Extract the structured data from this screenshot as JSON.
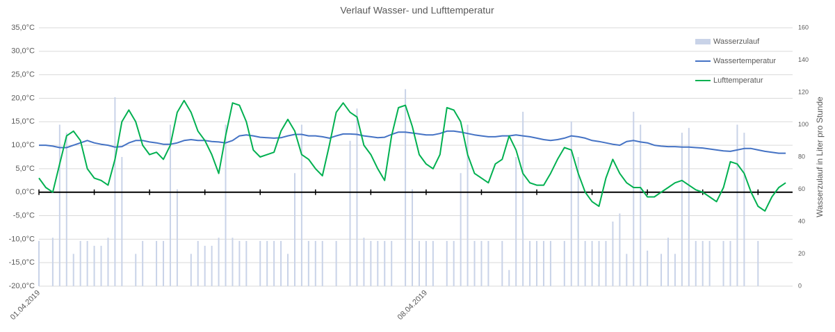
{
  "chart_data": {
    "type": "combo",
    "title": "Verlauf Wasser- und Lufttemperatur",
    "y2label": "Wasserzulauf in Liter pro Stunde",
    "categories": [
      "01.04.2019",
      null,
      null,
      null,
      null,
      null,
      null,
      null,
      null,
      null,
      null,
      null,
      null,
      null,
      null,
      null,
      null,
      null,
      null,
      null,
      null,
      null,
      null,
      null,
      null,
      null,
      null,
      null,
      null,
      null,
      null,
      null,
      null,
      null,
      null,
      null,
      null,
      null,
      null,
      null,
      null,
      null,
      null,
      null,
      null,
      null,
      null,
      null,
      null,
      null,
      null,
      null,
      null,
      null,
      null,
      null,
      "08.04.2019",
      null,
      null,
      null,
      null,
      null,
      null,
      null,
      null,
      null,
      null,
      null,
      null,
      null,
      null,
      null,
      null,
      null,
      null,
      null,
      null,
      null,
      null,
      null,
      null,
      null,
      null,
      null,
      null,
      null,
      null,
      null,
      null,
      null,
      null,
      null,
      null,
      null,
      null,
      null,
      null,
      null,
      null,
      null,
      null,
      null,
      null,
      null,
      null,
      null,
      null,
      null,
      null
    ],
    "ylim": [
      -20,
      35
    ],
    "yticks": [
      {
        "value": -20,
        "label": "-20,0°C"
      },
      {
        "value": -15,
        "label": "-15,0°C"
      },
      {
        "value": -10,
        "label": "-10,0°C"
      },
      {
        "value": -5,
        "label": "-5,0°C"
      },
      {
        "value": 0,
        "label": "0,0°C"
      },
      {
        "value": 5,
        "label": "5,0°C"
      },
      {
        "value": 10,
        "label": "10,0°C"
      },
      {
        "value": 15,
        "label": "15,0°C"
      },
      {
        "value": 20,
        "label": "20,0°C"
      },
      {
        "value": 25,
        "label": "25,0°C"
      },
      {
        "value": 30,
        "label": "30,0°C"
      },
      {
        "value": 35,
        "label": "35,0°C"
      }
    ],
    "y2lim": [
      0,
      160
    ],
    "y2ticks": [
      0,
      20,
      40,
      60,
      80,
      100,
      120,
      140,
      160
    ],
    "grid": true,
    "legend": "upper right",
    "series": [
      {
        "name": "Wasserzulauf",
        "type": "bar",
        "axis": "y2",
        "color": "#c9d3e8",
        "values": [
          28,
          0,
          30,
          100,
          95,
          20,
          28,
          28,
          25,
          25,
          30,
          117,
          80,
          0,
          20,
          28,
          0,
          28,
          28,
          100,
          60,
          0,
          20,
          28,
          25,
          25,
          30,
          100,
          30,
          28,
          28,
          0,
          28,
          28,
          28,
          28,
          20,
          70,
          100,
          28,
          28,
          28,
          0,
          28,
          0,
          90,
          110,
          30,
          28,
          28,
          28,
          28,
          0,
          122,
          60,
          28,
          28,
          28,
          0,
          28,
          28,
          70,
          100,
          28,
          28,
          28,
          0,
          28,
          10,
          80,
          108,
          28,
          28,
          28,
          28,
          0,
          28,
          102,
          80,
          28,
          28,
          28,
          28,
          40,
          45,
          20,
          108,
          100,
          22,
          0,
          20,
          30,
          20,
          95,
          98,
          28,
          28,
          28,
          0,
          28,
          28,
          100,
          95,
          0,
          28,
          0,
          0,
          0,
          0
        ]
      },
      {
        "name": "Wassertemperatur",
        "type": "line",
        "color": "#4472c4",
        "values": [
          10,
          10,
          9.8,
          9.5,
          9.5,
          10,
          10.5,
          11,
          10.5,
          10.2,
          10,
          9.6,
          9.7,
          10.5,
          11,
          11,
          10.7,
          10.5,
          10.2,
          10.2,
          10.5,
          11,
          11.2,
          11,
          11,
          10.8,
          10.7,
          10.5,
          11,
          12,
          12.2,
          12,
          11.7,
          11.6,
          11.5,
          11.6,
          12,
          12.3,
          12.3,
          12,
          12,
          11.8,
          11.5,
          12,
          12.4,
          12.4,
          12.3,
          12,
          11.8,
          11.6,
          11.7,
          12.3,
          12.8,
          12.8,
          12.6,
          12.4,
          12.2,
          12.2,
          12.5,
          13,
          13,
          12.8,
          12.5,
          12.2,
          12,
          11.8,
          11.8,
          12,
          12,
          12.2,
          12,
          11.8,
          11.5,
          11.2,
          11,
          11.2,
          11.5,
          12,
          11.8,
          11.5,
          11,
          10.8,
          10.5,
          10.2,
          10,
          10.8,
          11,
          10.7,
          10.5,
          10,
          9.8,
          9.7,
          9.7,
          9.6,
          9.6,
          9.5,
          9.4,
          9.2,
          9,
          8.8,
          8.7,
          9,
          9.3,
          9.3,
          9,
          8.7,
          8.5,
          8.3,
          8.3
        ]
      },
      {
        "name": "Lufttemperatur",
        "type": "line",
        "color": "#00b050",
        "values": [
          3,
          1,
          0,
          6,
          12,
          13,
          11,
          5,
          3,
          2.5,
          1.5,
          7,
          15,
          17.5,
          15,
          10,
          8,
          8.5,
          7,
          10,
          17,
          19.5,
          17,
          13,
          11,
          8,
          4,
          12,
          19,
          18.5,
          15,
          9,
          7.5,
          8,
          8.5,
          13,
          15.5,
          13,
          8,
          7,
          5,
          3.5,
          10,
          17,
          19,
          17,
          16,
          10,
          8,
          5,
          2.5,
          12,
          18,
          18.5,
          14,
          8,
          6,
          5,
          8,
          18,
          17.5,
          15,
          8,
          4,
          3,
          2,
          6,
          7,
          12,
          9,
          4,
          2,
          1.5,
          1.5,
          4,
          7,
          9.5,
          9,
          4,
          0,
          -2,
          -3,
          3,
          7,
          4,
          2,
          1,
          1,
          -1,
          -1,
          0,
          1,
          2,
          2.5,
          1.5,
          0.5,
          0,
          -1,
          -2,
          1,
          6.5,
          6,
          4,
          0,
          -3,
          -4,
          -1,
          1,
          2
        ]
      }
    ]
  }
}
